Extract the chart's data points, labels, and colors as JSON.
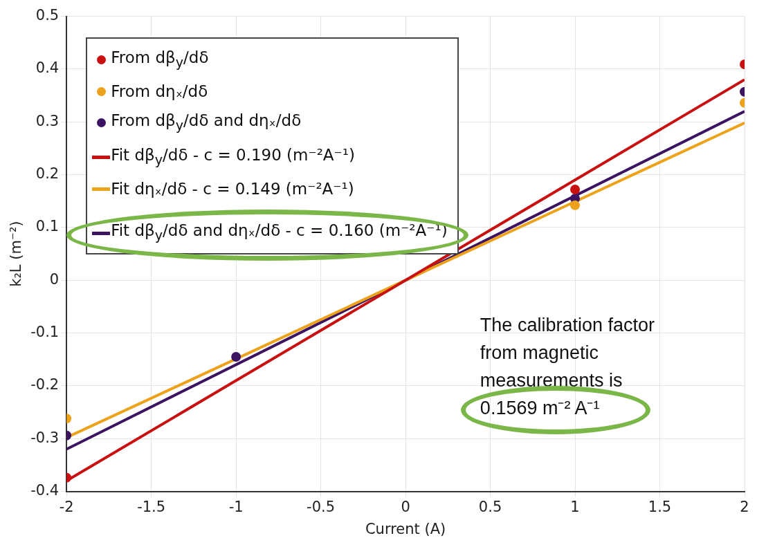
{
  "chart_data": {
    "type": "scatter",
    "xlabel": "Current (A)",
    "ylabel": "k₂L (m⁻²)",
    "xlim": [
      -2,
      2
    ],
    "xticks": [
      -2,
      -1.5,
      -1,
      -0.5,
      0,
      0.5,
      1,
      1.5,
      2
    ],
    "ylim": [
      -0.4,
      0.5
    ],
    "yticks": [
      -0.4,
      -0.3,
      -0.2,
      -0.1,
      0,
      0.1,
      0.2,
      0.3,
      0.4,
      0.5
    ],
    "grid": true,
    "legend": "top left",
    "series": [
      {
        "name": "From dβ$_{y}$/dδ",
        "type": "scatter",
        "marker": "circle",
        "color": "#c81010",
        "x": [
          -2,
          -1,
          1,
          2
        ],
        "values": [
          -0.374,
          null,
          0.172,
          0.409
        ]
      },
      {
        "name": "From dηₓ/dδ",
        "type": "scatter",
        "marker": "circle",
        "color": "#eca21a",
        "x": [
          -2,
          -1,
          1,
          2
        ],
        "values": [
          -0.262,
          null,
          0.142,
          0.336
        ]
      },
      {
        "name": "From dβ$_{y}$/dδ and dηₓ/dδ",
        "type": "scatter",
        "marker": "circle",
        "color": "#3c1361",
        "x": [
          -2,
          -1,
          1,
          2
        ],
        "values": [
          -0.294,
          -0.145,
          0.155,
          0.357
        ]
      },
      {
        "name": "Fit dβ$_{y}$/dδ - c = 0.190 (m⁻²A⁻¹)",
        "type": "line",
        "color": "#c81010",
        "x": [
          -2,
          2
        ],
        "values": [
          -0.38,
          0.38
        ]
      },
      {
        "name": "Fit dηₓ/dδ - c = 0.149 (m⁻²A⁻¹)",
        "type": "line",
        "color": "#eca21a",
        "x": [
          -2,
          2
        ],
        "values": [
          -0.298,
          0.298
        ]
      },
      {
        "name": "Fit dβ$_{y}$/dδ and dηₓ/dδ - c = 0.160 (m⁻²A⁻¹)",
        "type": "line",
        "color": "#3c1361",
        "x": [
          -2,
          2
        ],
        "values": [
          -0.32,
          0.32
        ]
      }
    ],
    "annotations": [
      "The calibration factor from magnetic measurements is 0.1569 m⁻² A⁻¹"
    ]
  }
}
